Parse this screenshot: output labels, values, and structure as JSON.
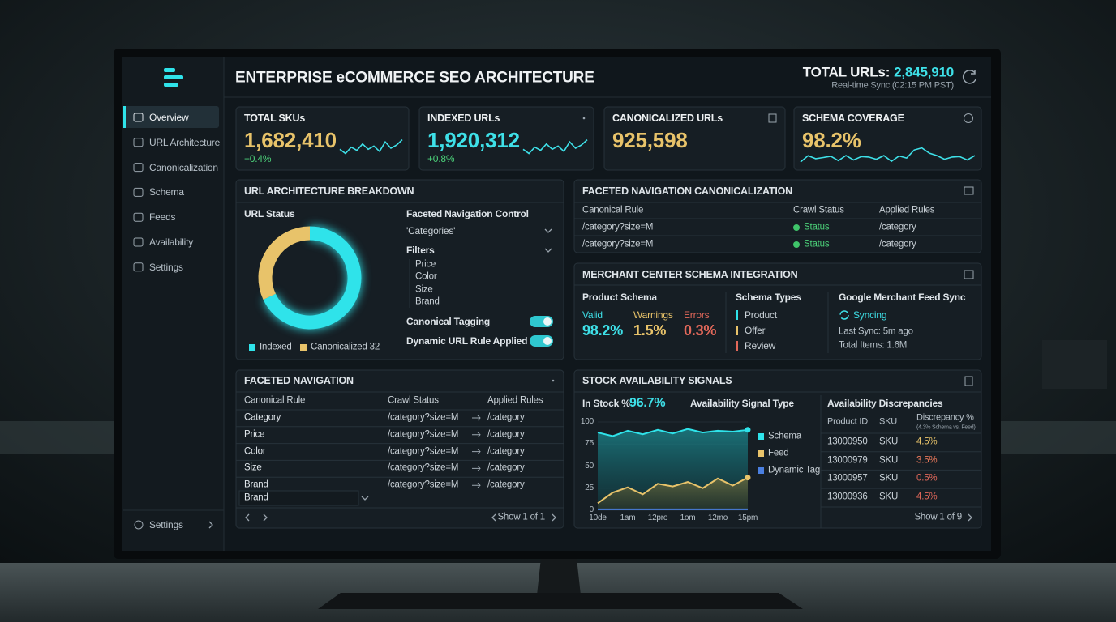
{
  "header": {
    "title": "ENTERPRISE eCOMMERCE SEO ARCHITECTURE",
    "total_label": "TOTAL URLs:",
    "total_value": "2,845,910",
    "sync": "Real-time Sync (02:15 PM PST)"
  },
  "sidebar": {
    "items": [
      "Overview",
      "URL Architecture",
      "Canonicalization",
      "Schema",
      "Feeds",
      "Availability",
      "Settings"
    ],
    "footer": "Settings"
  },
  "kpis": [
    {
      "label": "TOTAL SKUs",
      "value": "1,682,410",
      "delta": "+0.4%"
    },
    {
      "label": "INDEXED URLs",
      "value": "1,920,312",
      "delta": "+0.8%"
    },
    {
      "label": "CANONICALIZED URLs",
      "value": "925,598"
    },
    {
      "label": "SCHEMA COVERAGE",
      "value": "98.2%"
    }
  ],
  "url_breakdown": {
    "title": "URL ARCHITECTURE BREAKDOWN",
    "chart_title": "URL Status",
    "donut": {
      "type": "pie",
      "labels": [
        "Indexed",
        "Canonicalized 32"
      ],
      "values": [
        68,
        32
      ],
      "colors": [
        "#2fe3ea",
        "#e8c36a"
      ]
    },
    "control": {
      "title": "Faceted Navigation Control",
      "selected": "'Categories'",
      "filters_title": "Filters",
      "filters": [
        "Price",
        "Color",
        "Size",
        "Brand"
      ],
      "toggles": [
        "Canonical Tagging",
        "Dynamic URL Rule Applied"
      ]
    }
  },
  "canonicalization": {
    "title": "FACETED NAVIGATION CANONICALIZATION",
    "headers": [
      "Canonical Rule",
      "Crawl Status",
      "Applied Rules"
    ],
    "rows": [
      [
        "/category?size=M",
        "Status",
        "/category"
      ],
      [
        "/category?size=M",
        "Status",
        "/category"
      ]
    ]
  },
  "merchant": {
    "title": "MERCHANT CENTER SCHEMA INTEGRATION",
    "product_title": "Product Schema",
    "stats": [
      {
        "label": "Valid",
        "value": "98.2%",
        "color": "#3ee0e8"
      },
      {
        "label": "Warnings",
        "value": "1.5%",
        "color": "#e8c36a"
      },
      {
        "label": "Errors",
        "value": "0.3%",
        "color": "#e2685a"
      }
    ],
    "types_title": "Schema Types",
    "types": [
      "Product",
      "Offer",
      "Review"
    ],
    "type_colors": [
      "#2fe3ea",
      "#e8c36a",
      "#e2685a"
    ],
    "feed_title": "Google Merchant Feed Sync",
    "feed_status": "Syncing",
    "last_sync": "Last Sync: 5m ago",
    "total_items": "Total Items: 1.6M"
  },
  "faceted": {
    "title": "FACETED NAVIGATION",
    "headers": [
      "Canonical Rule",
      "Crawl Status",
      "Applied Rules"
    ],
    "rows": [
      [
        "Category",
        "/category?size=M",
        "/category"
      ],
      [
        "Price",
        "/category?size=M",
        "/category"
      ],
      [
        "Color",
        "/category?size=M",
        "/category"
      ],
      [
        "Size",
        "/category?size=M",
        "/category"
      ],
      [
        "Brand",
        "/category?size=M",
        "/category"
      ]
    ],
    "dropdown": "Brand",
    "pager": "Show 1 of 1"
  },
  "stock": {
    "title": "STOCK AVAILABILITY SIGNALS",
    "in_stock_label": "In Stock %",
    "in_stock_value": "96.7%",
    "signal_title": "Availability Signal Type",
    "chart": {
      "type": "line",
      "categories": [
        "10de",
        null,
        "1am",
        null,
        "12pro",
        null,
        "1om",
        null,
        "12mo",
        null,
        "15pm"
      ],
      "ylim": [
        0,
        100
      ],
      "yticks": [
        0,
        25,
        50,
        75,
        100
      ],
      "series": [
        {
          "name": "Schema",
          "color": "#2fe3ea",
          "values": [
            88,
            84,
            90,
            86,
            91,
            87,
            92,
            88,
            90,
            89,
            91
          ]
        },
        {
          "name": "Feed",
          "color": "#e8c36a",
          "values": [
            8,
            20,
            26,
            18,
            30,
            27,
            32,
            25,
            36,
            28,
            37
          ]
        },
        {
          "name": "Dynamic Tag",
          "color": "#4a7fe0",
          "values": [
            1,
            1,
            1,
            1,
            1,
            1,
            1,
            1,
            1,
            1,
            1
          ]
        }
      ]
    },
    "disc_title": "Availability Discrepancies",
    "disc_headers": [
      "Product ID",
      "SKU",
      "Discrepancy %"
    ],
    "disc_note": "(4.3% Schema vs. Feed)",
    "disc_rows": [
      [
        "13000950",
        "SKU",
        "4.5%"
      ],
      [
        "13000979",
        "SKU",
        "3.5%"
      ],
      [
        "13000957",
        "SKU",
        "0.5%"
      ],
      [
        "13000936",
        "SKU",
        "4.5%"
      ]
    ],
    "disc_colors": [
      "#e8c36a",
      "#e8785a",
      "#e2685a",
      "#e2685a"
    ],
    "pager": "Show 1 of 9"
  }
}
